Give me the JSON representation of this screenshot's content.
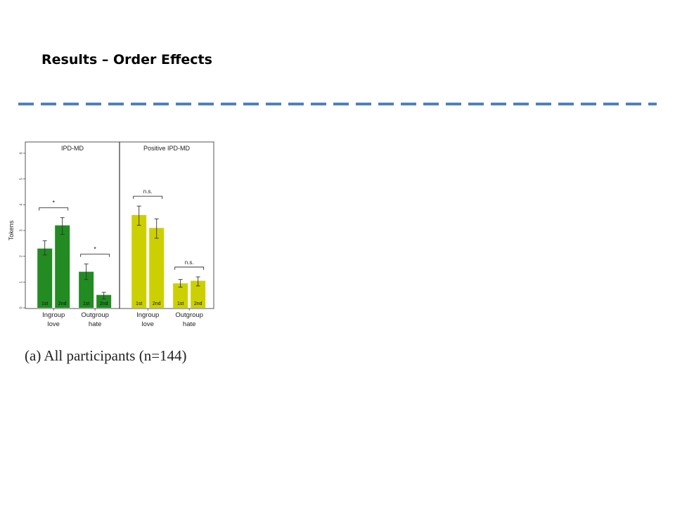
{
  "slide": {
    "title": "Results – Order Effects",
    "divider_color": "#4f81bd",
    "caption": "(a) All participants (n=144)"
  },
  "chart_data": {
    "type": "bar",
    "ylabel": "Tokens",
    "ylim": [
      0,
      6
    ],
    "yticks": [
      0,
      1,
      2,
      3,
      4,
      5,
      6
    ],
    "grid": false,
    "panels": [
      {
        "title": "IPD-MD",
        "color": "#228b22",
        "groups": [
          {
            "label_lines": [
              "Ingroup",
              "love"
            ],
            "bars": [
              {
                "name": "1st",
                "value": 2.3,
                "err_low": 2.05,
                "err_high": 2.6
              },
              {
                "name": "2nd",
                "value": 3.2,
                "err_low": 2.85,
                "err_high": 3.5
              }
            ],
            "significance": "*"
          },
          {
            "label_lines": [
              "Outgroup",
              "hate"
            ],
            "bars": [
              {
                "name": "1st",
                "value": 1.4,
                "err_low": 1.1,
                "err_high": 1.7
              },
              {
                "name": "2nd",
                "value": 0.5,
                "err_low": 0.35,
                "err_high": 0.6
              }
            ],
            "significance": "*"
          }
        ]
      },
      {
        "title": "Positive IPD-MD",
        "color": "#cdd000",
        "groups": [
          {
            "label_lines": [
              "Ingroup",
              "love"
            ],
            "bars": [
              {
                "name": "1st",
                "value": 3.6,
                "err_low": 3.2,
                "err_high": 3.95
              },
              {
                "name": "2nd",
                "value": 3.1,
                "err_low": 2.7,
                "err_high": 3.45
              }
            ],
            "significance": "n.s."
          },
          {
            "label_lines": [
              "Outgroup",
              "hate"
            ],
            "bars": [
              {
                "name": "1st",
                "value": 0.95,
                "err_low": 0.8,
                "err_high": 1.1
              },
              {
                "name": "2nd",
                "value": 1.05,
                "err_low": 0.85,
                "err_high": 1.2
              }
            ],
            "significance": "n.s."
          }
        ]
      }
    ]
  }
}
